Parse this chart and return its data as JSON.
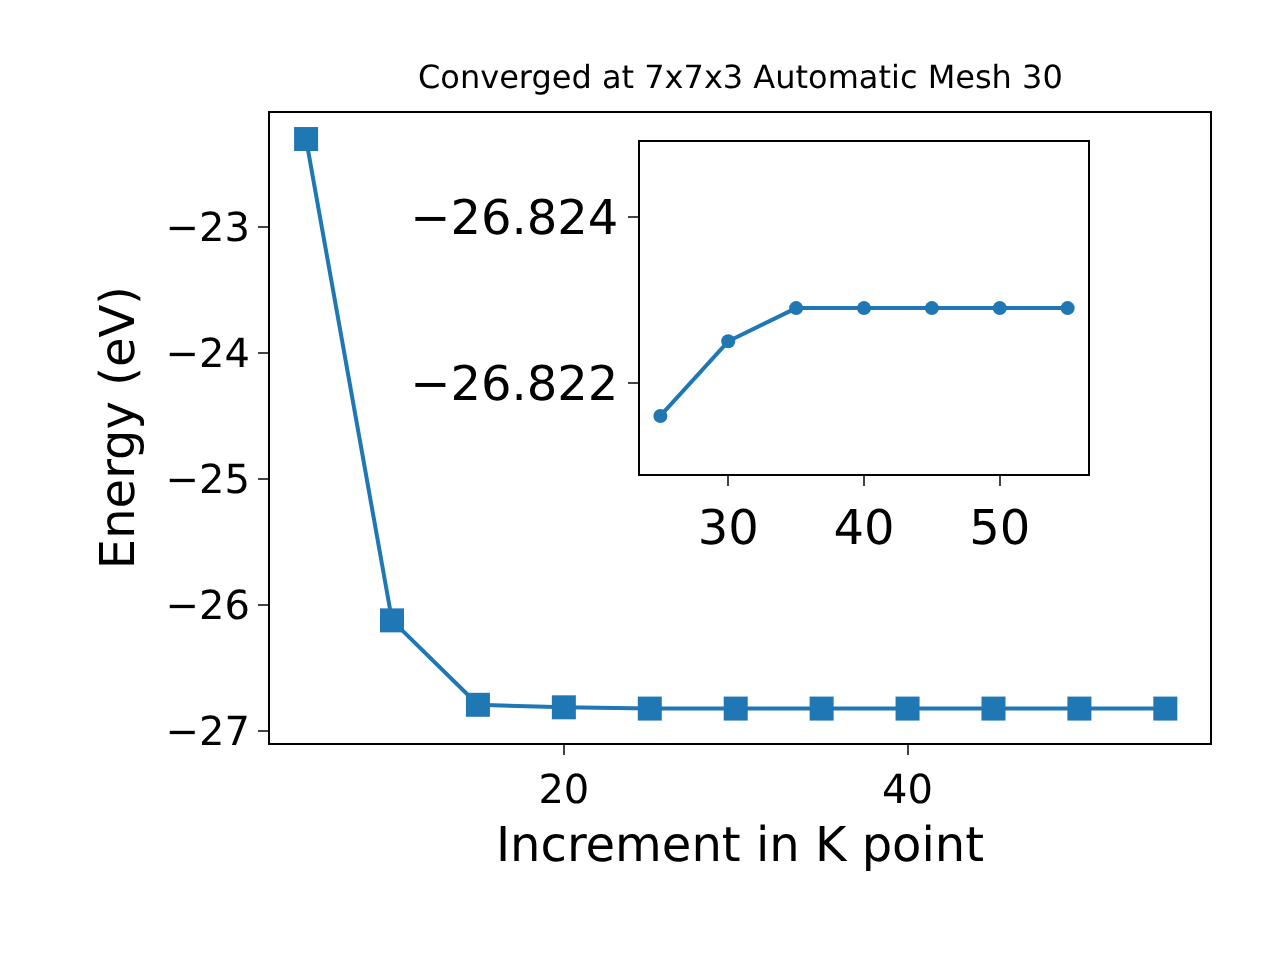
{
  "chart_data": [
    {
      "type": "line",
      "title": "Converged at 7x7x3 Automatic Mesh 30",
      "xlabel": "Increment in K point",
      "ylabel": "Energy (eV)",
      "x": [
        5,
        10,
        15,
        20,
        25,
        30,
        35,
        40,
        45,
        50,
        55
      ],
      "series": [
        {
          "color": "#1f77b4",
          "values": [
            -22.3,
            -26.12,
            -26.79,
            -26.81,
            -26.82,
            -26.82,
            -26.82,
            -26.82,
            -26.82,
            -26.82,
            -26.82
          ]
        }
      ],
      "xlim": [
        2.9,
        57.6
      ],
      "xticks": [
        20,
        40
      ],
      "ylim": [
        -27.09,
        -22.09
      ],
      "yticks": [
        -27,
        -26,
        -25,
        -24,
        -23
      ],
      "marker": "square"
    },
    {
      "type": "line",
      "x": [
        25,
        30,
        35,
        40,
        45,
        50,
        55
      ],
      "series": [
        {
          "color": "#1f77b4",
          "values": [
            -26.8216,
            -26.8225,
            -26.8229,
            -26.8229,
            -26.8229,
            -26.8229,
            -26.8229
          ]
        }
      ],
      "xlim": [
        23.5,
        56.5
      ],
      "xticks": [
        30,
        40,
        50
      ],
      "ylim": [
        -26.8209,
        -26.8249
      ],
      "yticks": [
        -26.822,
        -26.824
      ],
      "marker": "circle"
    }
  ]
}
